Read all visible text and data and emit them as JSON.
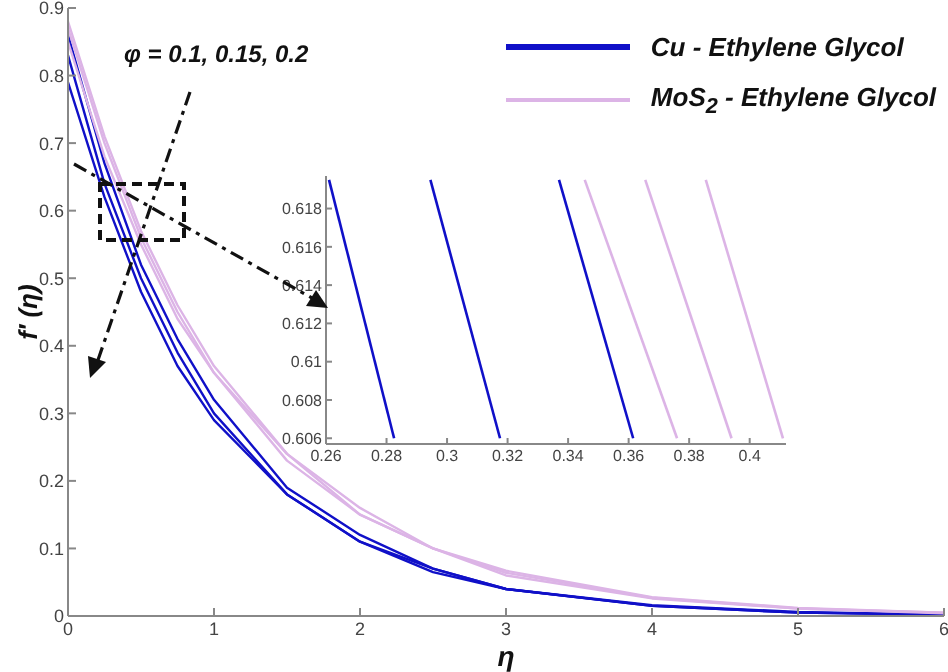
{
  "chart_data": [
    {
      "type": "line",
      "xlabel": "η",
      "ylabel": "f′ (η)",
      "legend": "top right",
      "annotations": [
        "φ = 0.1, 0.15, 0.2"
      ],
      "x": [
        0,
        0.25,
        0.5,
        0.75,
        1,
        1.5,
        2,
        2.5,
        3,
        4,
        5,
        6
      ],
      "xlim": [
        0,
        6
      ],
      "xticks": [
        0,
        1,
        2,
        3,
        4,
        5,
        6
      ],
      "ylim": [
        0,
        0.9
      ],
      "yticks": [
        0,
        0.1,
        0.2,
        0.3,
        0.4,
        0.5,
        0.6,
        0.7,
        0.8,
        0.9
      ],
      "series": [
        {
          "name": "Cu - Ethylene Glycol",
          "color": "#1010c8",
          "values": [
            0.79,
            0.62,
            0.48,
            0.37,
            0.29,
            0.18,
            0.11,
            0.065,
            0.04,
            0.015,
            0.005,
            0.002
          ]
        },
        {
          "color": "#1010c8",
          "values": [
            0.83,
            0.64,
            0.5,
            0.39,
            0.3,
            0.18,
            0.11,
            0.07,
            0.04,
            0.015,
            0.005,
            0.002
          ]
        },
        {
          "color": "#1010c8",
          "values": [
            0.86,
            0.67,
            0.52,
            0.41,
            0.32,
            0.19,
            0.12,
            0.07,
            0.04,
            0.016,
            0.006,
            0.002
          ]
        },
        {
          "name": "MoS$_{2}$ - Ethylene Glycol",
          "color": "#dcb4e6",
          "values": [
            0.85,
            0.68,
            0.55,
            0.44,
            0.36,
            0.23,
            0.15,
            0.1,
            0.06,
            0.026,
            0.011,
            0.004
          ]
        },
        {
          "color": "#dcb4e6",
          "values": [
            0.87,
            0.7,
            0.56,
            0.45,
            0.36,
            0.24,
            0.15,
            0.1,
            0.064,
            0.027,
            0.011,
            0.005
          ]
        },
        {
          "color": "#dcb4e6",
          "values": [
            0.88,
            0.71,
            0.57,
            0.46,
            0.37,
            0.24,
            0.16,
            0.1,
            0.067,
            0.028,
            0.012,
            0.005
          ]
        }
      ]
    },
    {
      "type": "line",
      "xlim": [
        0.26,
        0.412
      ],
      "xticks": [
        0.26,
        0.28,
        0.3,
        0.32,
        0.34,
        0.36,
        0.38,
        0.4
      ],
      "ylim": [
        0.6057,
        0.6197
      ],
      "yticks": [
        0.606,
        0.608,
        0.61,
        0.612,
        0.614,
        0.616,
        0.618
      ],
      "series": [
        {
          "color": "#1010c8",
          "x": [
            0.261,
            0.2825
          ],
          "values": [
            0.6195,
            0.606
          ]
        },
        {
          "color": "#1010c8",
          "x": [
            0.2945,
            0.3175
          ],
          "values": [
            0.6195,
            0.606
          ]
        },
        {
          "color": "#1010c8",
          "x": [
            0.337,
            0.3615
          ],
          "values": [
            0.6195,
            0.606
          ]
        },
        {
          "color": "#dcb4e6",
          "x": [
            0.3455,
            0.376
          ],
          "values": [
            0.6195,
            0.606
          ]
        },
        {
          "color": "#dcb4e6",
          "x": [
            0.3655,
            0.394
          ],
          "values": [
            0.6195,
            0.606
          ]
        },
        {
          "color": "#dcb4e6",
          "x": [
            0.3855,
            0.411
          ],
          "values": [
            0.6195,
            0.606
          ]
        }
      ]
    }
  ]
}
